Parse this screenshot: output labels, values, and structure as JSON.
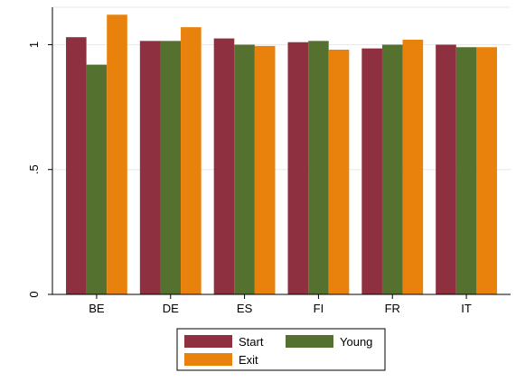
{
  "chart_data": {
    "type": "bar",
    "title": "",
    "xlabel": "",
    "ylabel": "",
    "categories": [
      "BE",
      "DE",
      "ES",
      "FI",
      "FR",
      "IT"
    ],
    "series": [
      {
        "name": "Start",
        "color": "#8e3040",
        "values": [
          1.03,
          1.015,
          1.025,
          1.01,
          0.985,
          1.0
        ]
      },
      {
        "name": "Young",
        "color": "#55712f",
        "values": [
          0.92,
          1.015,
          1.0,
          1.015,
          1.0,
          0.99
        ]
      },
      {
        "name": "Exit",
        "color": "#e8820c",
        "values": [
          1.12,
          1.07,
          0.995,
          0.98,
          1.02,
          0.99
        ]
      }
    ],
    "ylim": [
      0,
      1.15
    ],
    "yticks": [
      0,
      0.5,
      1
    ],
    "ytick_labels": [
      "0",
      ".5",
      "1"
    ],
    "grid": true,
    "legend_position": "bottom"
  }
}
